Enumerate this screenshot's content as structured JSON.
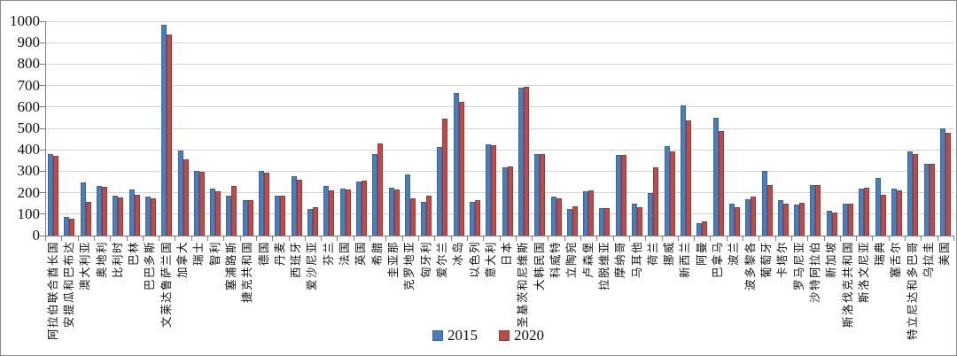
{
  "chart_data": {
    "type": "bar",
    "title": "",
    "xlabel": "",
    "ylabel": "",
    "ylim": [
      0,
      1000
    ],
    "yticks": [
      0,
      100,
      200,
      300,
      400,
      500,
      600,
      700,
      800,
      900,
      1000
    ],
    "grid": true,
    "legend_position": "bottom",
    "colors": {
      "series_2015": "#4a7ebb",
      "series_2020": "#be4b48"
    },
    "categories": [
      "阿拉伯联合酋长国",
      "安提瓜和巴布达",
      "澳大利亚",
      "奥地利",
      "比利时",
      "巴林",
      "巴巴多斯",
      "文莱达鲁萨兰国",
      "加拿大",
      "瑞士",
      "智利",
      "塞浦路斯",
      "捷克共和国",
      "德国",
      "丹麦",
      "西班牙",
      "爱沙尼亚",
      "芬兰",
      "法国",
      "英国",
      "希腊",
      "圭亚那",
      "克罗地亚",
      "匈牙利",
      "爱尔兰",
      "冰岛",
      "以色列",
      "意大利",
      "日本",
      "圣基茨和尼维斯",
      "大韩民国",
      "科威特",
      "立陶宛",
      "卢森堡",
      "拉脱维亚",
      "摩纳哥",
      "马耳他",
      "荷兰",
      "挪威",
      "新西兰",
      "阿曼",
      "巴拿马",
      "波兰",
      "波多黎各",
      "葡萄牙",
      "卡塔尔",
      "罗马尼亚",
      "沙特阿拉伯",
      "新加坡",
      "斯洛伐克共和国",
      "斯洛文尼亚",
      "瑞典",
      "塞舌尔",
      "特立尼达和多巴哥",
      "乌拉圭",
      "美国"
    ],
    "series": [
      {
        "name": "2015",
        "values": [
          380,
          85,
          248,
          230,
          186,
          214,
          180,
          985,
          395,
          303,
          220,
          186,
          165,
          300,
          188,
          277,
          124,
          230,
          217,
          254,
          381,
          224,
          285,
          158,
          413,
          665,
          158,
          425,
          319,
          690,
          382,
          183,
          122,
          206,
          128,
          374,
          147,
          199,
          417,
          608,
          59,
          551,
          149,
          169,
          300,
          165,
          145,
          235,
          115,
          150,
          220,
          268,
          221,
          392,
          333,
          500
        ]
      },
      {
        "name": "2020",
        "values": [
          370,
          78,
          157,
          226,
          178,
          190,
          175,
          940,
          355,
          297,
          208,
          232,
          165,
          295,
          185,
          262,
          131,
          211,
          216,
          258,
          431,
          213,
          172,
          187,
          545,
          625,
          165,
          422,
          322,
          695,
          380,
          175,
          138,
          210,
          128,
          374,
          131,
          318,
          393,
          537,
          67,
          486,
          134,
          181,
          235,
          147,
          154,
          235,
          109,
          148,
          222,
          189,
          209,
          379,
          333,
          479
        ]
      }
    ]
  }
}
